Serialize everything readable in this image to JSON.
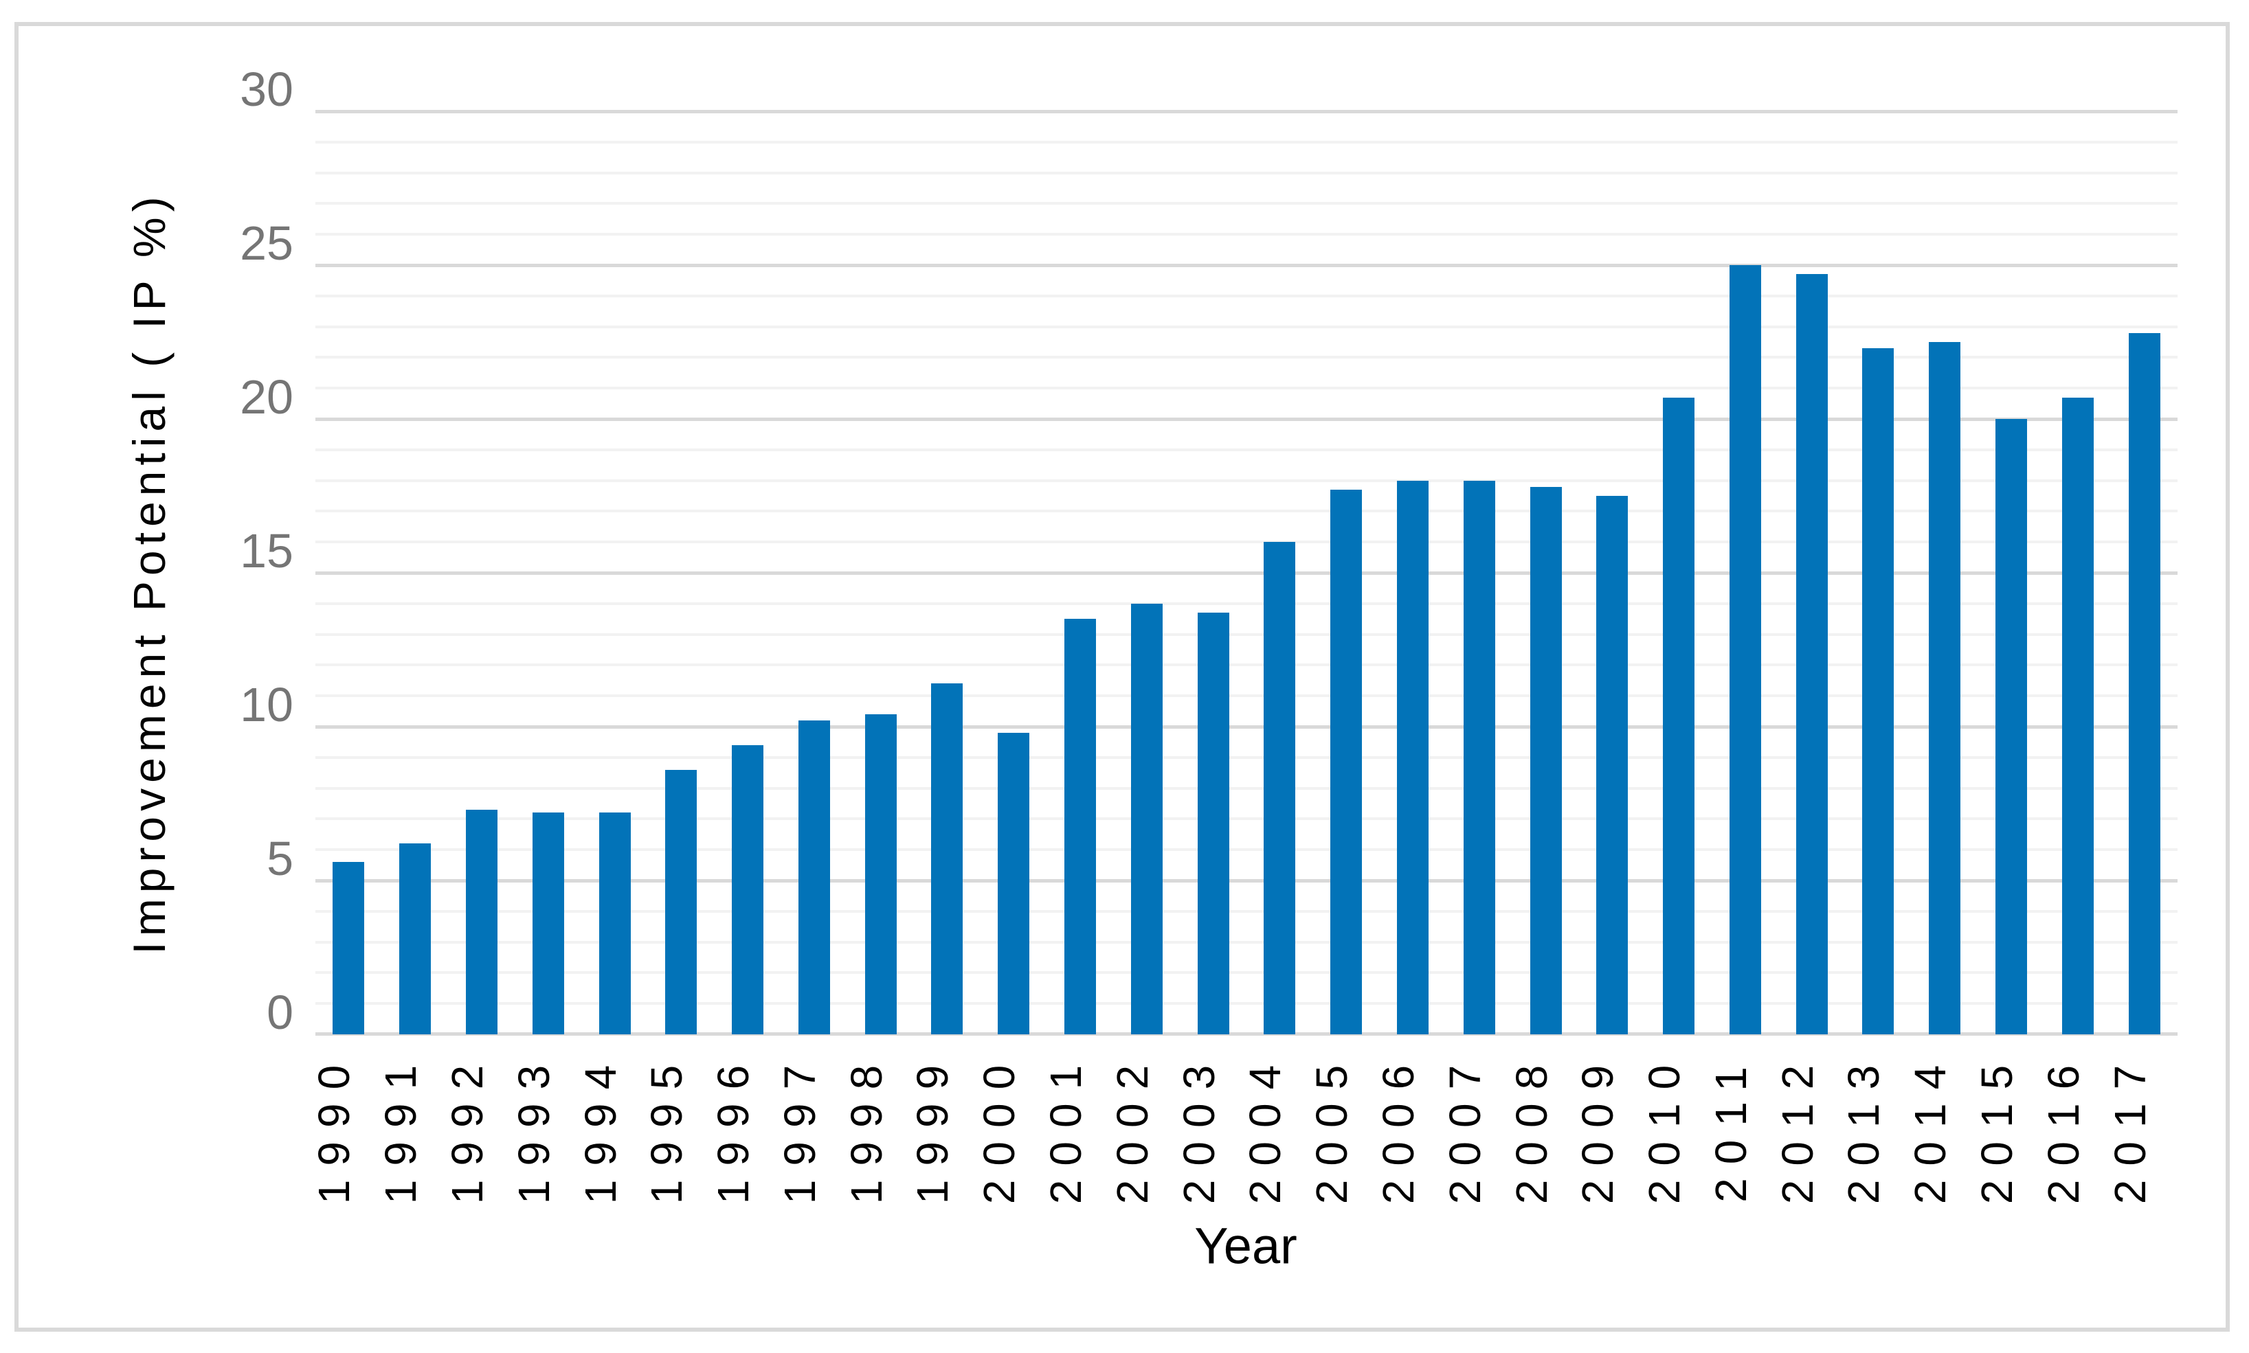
{
  "chart_data": {
    "type": "bar",
    "title": "",
    "xlabel": "Year",
    "ylabel": "Improvement Potential ( IP %)",
    "categories": [
      "1990",
      "1991",
      "1992",
      "1993",
      "1994",
      "1995",
      "1996",
      "1997",
      "1998",
      "1999",
      "2000",
      "2001",
      "2002",
      "2003",
      "2004",
      "2005",
      "2006",
      "2007",
      "2008",
      "2009",
      "2010",
      "2011",
      "2012",
      "2013",
      "2014",
      "2015",
      "2016",
      "2017"
    ],
    "values": [
      5.6,
      6.2,
      7.3,
      7.2,
      7.2,
      8.6,
      9.4,
      10.2,
      10.4,
      11.4,
      9.8,
      13.5,
      14.0,
      13.7,
      16.0,
      17.7,
      18.0,
      18.0,
      17.8,
      17.5,
      20.7,
      25.0,
      24.7,
      22.3,
      22.5,
      20.0,
      20.7,
      22.8
    ],
    "ylim": [
      0,
      30
    ],
    "y_major_ticks": [
      0,
      5,
      10,
      15,
      20,
      25,
      30
    ],
    "y_minor_unit": 1,
    "grid": "horizontal major and minor",
    "legend": "none",
    "colors": {
      "bar": "#0273B8",
      "major_gridline": "#D9D9D9",
      "minor_gridline": "#F2F2F2",
      "axis_line": "#D9D9D9",
      "y_tick_label": "#757575",
      "x_tick_label": "#000000",
      "frame_border": "#D9D9D9"
    }
  }
}
